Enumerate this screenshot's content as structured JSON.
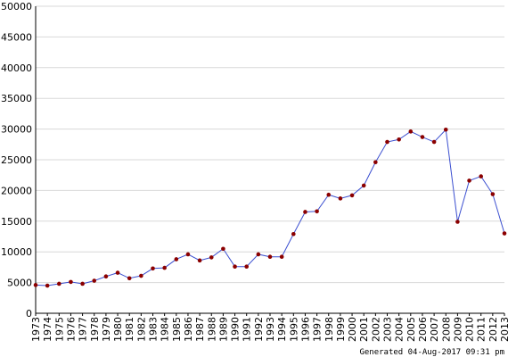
{
  "chart_data": {
    "type": "line",
    "title": "",
    "xlabel": "",
    "ylabel": "",
    "ylim": [
      0,
      50000
    ],
    "yticks": [
      0,
      5000,
      10000,
      15000,
      20000,
      25000,
      30000,
      35000,
      40000,
      45000,
      50000
    ],
    "grid": true,
    "legend": "none",
    "line_color": "#3b4fd0",
    "marker_color": "#8b0000",
    "grid_color": "#d8d8d8",
    "x": [
      "1973",
      "1974",
      "1975",
      "1976",
      "1977",
      "1978",
      "1979",
      "1980",
      "1981",
      "1982",
      "1983",
      "1984",
      "1985",
      "1986",
      "1987",
      "1988",
      "1989",
      "1990",
      "1991",
      "1992",
      "1993",
      "1994",
      "1995",
      "1996",
      "1997",
      "1998",
      "1999",
      "2000",
      "2001",
      "2002",
      "2003",
      "2004",
      "2005",
      "2006",
      "2007",
      "2008",
      "2009",
      "2010",
      "2011",
      "2012",
      "2013"
    ],
    "series": [
      {
        "values": [
          4600,
          4500,
          4800,
          5100,
          4800,
          5300,
          6000,
          6600,
          5700,
          6100,
          7300,
          7400,
          8800,
          9600,
          8600,
          9100,
          10500,
          7600,
          7600,
          9600,
          9200,
          9200,
          12900,
          16500,
          16600,
          19300,
          18700,
          19200,
          20800,
          24600,
          27900,
          28300,
          29600,
          28700,
          27900,
          29900,
          14900,
          21600,
          22300,
          19400,
          13000
        ]
      }
    ]
  },
  "footer": "Generated 04-Aug-2017 09:31 pm"
}
